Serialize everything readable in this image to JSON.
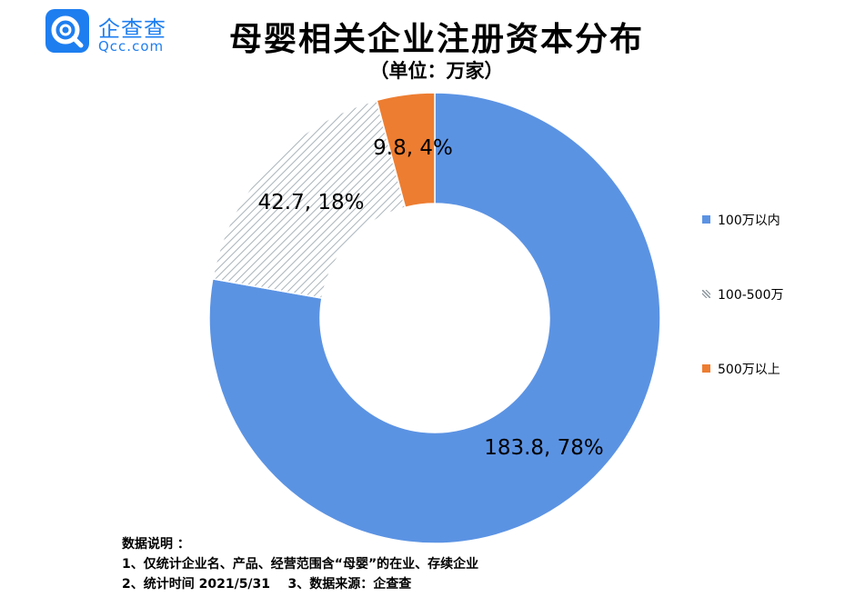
{
  "logo": {
    "cn": "企查查",
    "en": "Qcc.com"
  },
  "title": "母婴相关企业注册资本分布",
  "subtitle": "（单位：万家）",
  "chart_data": {
    "type": "pie",
    "donut": true,
    "categories": [
      "100万以内",
      "100-500万",
      "500万以上"
    ],
    "values": [
      183.8,
      42.7,
      9.8
    ],
    "percent_labels": [
      "78%",
      "18%",
      "4%"
    ],
    "data_labels": [
      "183.8, 78%",
      "42.7, 18%",
      "9.8, 4%"
    ],
    "colors": [
      "#5b93e3",
      "hatched-grey",
      "#ed7d31"
    ],
    "legend_position": "right"
  },
  "legend": [
    {
      "label": "100万以内",
      "color": "#5b93e3"
    },
    {
      "label": "100-500万",
      "color": "hatched-grey"
    },
    {
      "label": "500万以上",
      "color": "#ed7d31"
    }
  ],
  "notes": {
    "heading": "数据说明 ：",
    "line1": "1、仅统计企业名、产品、经营范围含“母婴”的在业、存续企业",
    "line2": "2、统计时间 2021/5/31    3、数据来源：企查查"
  }
}
